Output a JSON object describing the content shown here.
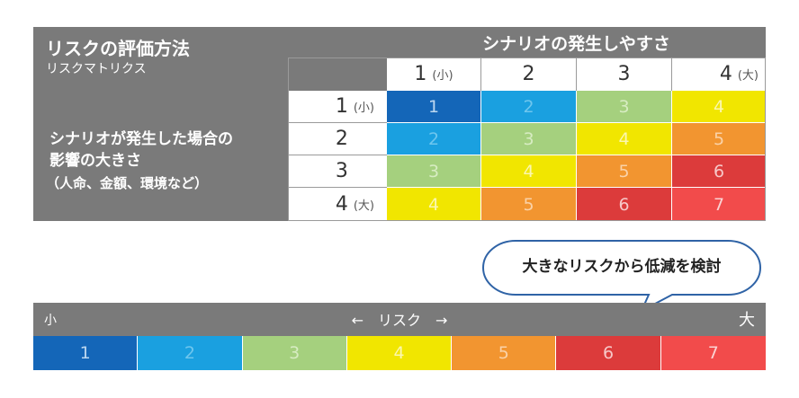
{
  "matrix": {
    "title": "リスクの評価方法",
    "subtitle": "リスクマトリクス",
    "col_header": "シナリオの発生しやすさ",
    "row_header": {
      "line1": "シナリオが発生した場合の",
      "line2": "影響の大きさ",
      "line3": "（人命、金額、環境など）"
    },
    "col_labels": [
      {
        "num": "1",
        "note": "(小)"
      },
      {
        "num": "2",
        "note": ""
      },
      {
        "num": "3",
        "note": ""
      },
      {
        "num": "4",
        "note": "(大)"
      }
    ],
    "row_labels": [
      {
        "num": "1",
        "note": "(小)"
      },
      {
        "num": "2",
        "note": ""
      },
      {
        "num": "3",
        "note": ""
      },
      {
        "num": "4",
        "note": "(大)"
      }
    ],
    "cells": [
      [
        "1",
        "2",
        "3",
        "4"
      ],
      [
        "2",
        "3",
        "4",
        "5"
      ],
      [
        "3",
        "4",
        "5",
        "6"
      ],
      [
        "4",
        "5",
        "6",
        "7"
      ]
    ]
  },
  "level_colors": {
    "1": "#1466b8",
    "2": "#1aa0e0",
    "3": "#a5d07e",
    "4": "#f1e600",
    "5": "#f29530",
    "6": "#dc3b3b",
    "7": "#f24b4b"
  },
  "level_text_colors": {
    "1": "#bcd7f0",
    "2": "#6ec6ee",
    "3": "#d7ecc2",
    "4": "#fbf7b0",
    "5": "#fad2a8",
    "6": "#f7c8c8",
    "7": "#fbd3d3"
  },
  "callout": {
    "text": "大きなリスクから低減を検討"
  },
  "scale": {
    "left_label": "小",
    "center_label": "←　リスク　→",
    "right_label": "大",
    "levels": [
      "1",
      "2",
      "3",
      "4",
      "5",
      "6",
      "7"
    ]
  }
}
